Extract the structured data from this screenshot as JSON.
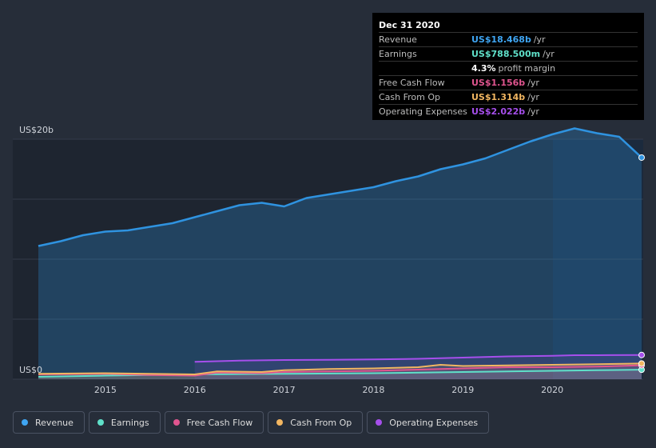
{
  "tooltip": {
    "date": "Dec 31 2020",
    "rows": [
      {
        "label": "Revenue",
        "value": "US$18.468b",
        "unit": "/yr",
        "color": "#3fa5f2"
      },
      {
        "label": "Earnings",
        "value": "US$788.500m",
        "unit": "/yr",
        "color": "#5fe0c9"
      },
      {
        "label": "",
        "value": "4.3%",
        "unit": "profit margin",
        "color": "#ffffff"
      },
      {
        "label": "Free Cash Flow",
        "value": "US$1.156b",
        "unit": "/yr",
        "color": "#e0558f"
      },
      {
        "label": "Cash From Op",
        "value": "US$1.314b",
        "unit": "/yr",
        "color": "#f2b661"
      },
      {
        "label": "Operating Expenses",
        "value": "US$2.022b",
        "unit": "/yr",
        "color": "#a64fec"
      }
    ]
  },
  "chart_data": {
    "type": "area",
    "ylabel_top": "US$20b",
    "ylabel_bottom": "US$0",
    "ylim": [
      0,
      20
    ],
    "xlim": [
      2014.25,
      2021.0
    ],
    "x_ticks": [
      "2015",
      "2016",
      "2017",
      "2018",
      "2019",
      "2020"
    ],
    "grid": true,
    "series": [
      {
        "name": "Revenue",
        "color": "#2f93e0",
        "x": [
          2014.25,
          2014.5,
          2014.75,
          2015.0,
          2015.25,
          2015.5,
          2015.75,
          2016.0,
          2016.25,
          2016.5,
          2016.75,
          2017.0,
          2017.25,
          2017.5,
          2017.75,
          2018.0,
          2018.25,
          2018.5,
          2018.75,
          2019.0,
          2019.25,
          2019.5,
          2019.75,
          2020.0,
          2020.25,
          2020.5,
          2020.75,
          2021.0
        ],
        "values": [
          11.1,
          11.5,
          12.0,
          12.3,
          12.4,
          12.7,
          13.0,
          13.5,
          14.0,
          14.5,
          14.7,
          14.4,
          15.1,
          15.4,
          15.7,
          16.0,
          16.5,
          16.9,
          17.5,
          17.9,
          18.4,
          19.1,
          19.8,
          20.4,
          20.9,
          20.5,
          20.2,
          18.47
        ]
      },
      {
        "name": "Earnings",
        "color": "#5fe0c9",
        "x": [
          2014.25,
          2015.0,
          2016.0,
          2017.0,
          2018.0,
          2019.0,
          2020.0,
          2020.5,
          2021.0
        ],
        "values": [
          0.2,
          0.3,
          0.4,
          0.45,
          0.5,
          0.6,
          0.7,
          0.75,
          0.79
        ]
      },
      {
        "name": "Free Cash Flow",
        "color": "#e0558f",
        "x": [
          2014.25,
          2015.0,
          2015.5,
          2016.0,
          2016.25,
          2016.75,
          2017.0,
          2017.5,
          2018.0,
          2018.5,
          2019.0,
          2019.5,
          2020.0,
          2020.5,
          2021.0
        ],
        "values": [
          0.4,
          0.45,
          0.35,
          0.3,
          0.55,
          0.5,
          0.6,
          0.65,
          0.7,
          0.8,
          0.9,
          1.0,
          1.0,
          1.05,
          1.16
        ]
      },
      {
        "name": "Cash From Op",
        "color": "#f2b661",
        "x": [
          2014.25,
          2015.0,
          2015.5,
          2016.0,
          2016.25,
          2016.75,
          2017.0,
          2017.5,
          2018.0,
          2018.5,
          2018.75,
          2019.0,
          2019.5,
          2020.0,
          2020.5,
          2021.0
        ],
        "values": [
          0.45,
          0.5,
          0.45,
          0.4,
          0.65,
          0.6,
          0.75,
          0.85,
          0.9,
          1.0,
          1.2,
          1.1,
          1.15,
          1.2,
          1.25,
          1.31
        ]
      },
      {
        "name": "Operating Expenses",
        "color": "#a64fec",
        "x": [
          2016.0,
          2016.5,
          2017.0,
          2017.5,
          2018.0,
          2018.5,
          2019.0,
          2019.5,
          2020.0,
          2020.25,
          2020.5,
          2021.0
        ],
        "values": [
          1.45,
          1.55,
          1.6,
          1.62,
          1.65,
          1.7,
          1.8,
          1.9,
          1.95,
          2.0,
          2.0,
          2.02
        ]
      }
    ]
  },
  "legend": [
    {
      "label": "Revenue",
      "color": "#3fa5f2"
    },
    {
      "label": "Earnings",
      "color": "#5fe0c9"
    },
    {
      "label": "Free Cash Flow",
      "color": "#e0558f"
    },
    {
      "label": "Cash From Op",
      "color": "#f2b661"
    },
    {
      "label": "Operating Expenses",
      "color": "#a64fec"
    }
  ]
}
